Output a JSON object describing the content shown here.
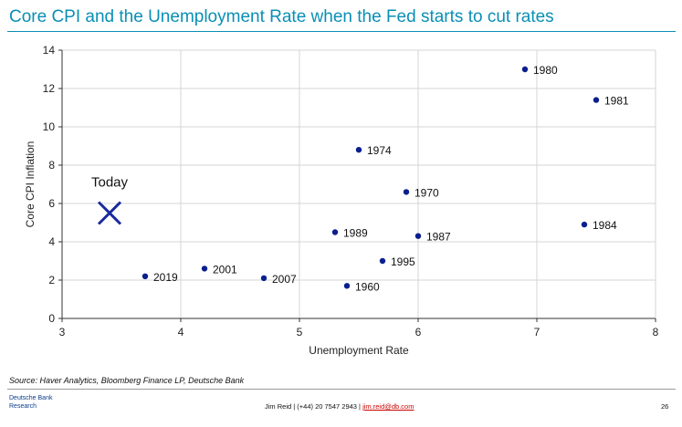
{
  "title": "Core CPI and the Unemployment Rate when the Fed starts to cut rates",
  "chart_data": {
    "type": "scatter",
    "title": "Core CPI and the Unemployment Rate when the Fed starts to cut rates",
    "xlabel": "Unemployment Rate",
    "ylabel": "Core CPI Inflation",
    "xlim": [
      3,
      8
    ],
    "ylim": [
      0,
      14
    ],
    "xticks": [
      3,
      4,
      5,
      6,
      7,
      8
    ],
    "yticks": [
      0,
      2,
      4,
      6,
      8,
      10,
      12,
      14
    ],
    "grid": true,
    "point_color": "#0a1f8f",
    "points": [
      {
        "label": "1960",
        "x": 5.4,
        "y": 1.7
      },
      {
        "label": "1970",
        "x": 5.9,
        "y": 6.6
      },
      {
        "label": "1974",
        "x": 5.5,
        "y": 8.8
      },
      {
        "label": "1980",
        "x": 6.9,
        "y": 13.0
      },
      {
        "label": "1981",
        "x": 7.5,
        "y": 11.4
      },
      {
        "label": "1984",
        "x": 7.4,
        "y": 4.9
      },
      {
        "label": "1987",
        "x": 6.0,
        "y": 4.3
      },
      {
        "label": "1989",
        "x": 5.3,
        "y": 4.5
      },
      {
        "label": "1995",
        "x": 5.7,
        "y": 3.0
      },
      {
        "label": "2001",
        "x": 4.2,
        "y": 2.6
      },
      {
        "label": "2007",
        "x": 4.7,
        "y": 2.1
      },
      {
        "label": "2019",
        "x": 3.7,
        "y": 2.2
      }
    ],
    "highlight": {
      "label": "Today",
      "x": 3.4,
      "y": 5.5,
      "marker": "x",
      "color": "#1a2a9c"
    }
  },
  "source": "Source: Haver Analytics, Bloomberg Finance LP, Deutsche Bank",
  "footer": {
    "brand_line1": "Deutsche Bank",
    "brand_line2": "Research",
    "contact": "Jim Reid | (+44) 20 7547 2943 | ",
    "email": "jim.reid@db.com",
    "page": "26"
  }
}
